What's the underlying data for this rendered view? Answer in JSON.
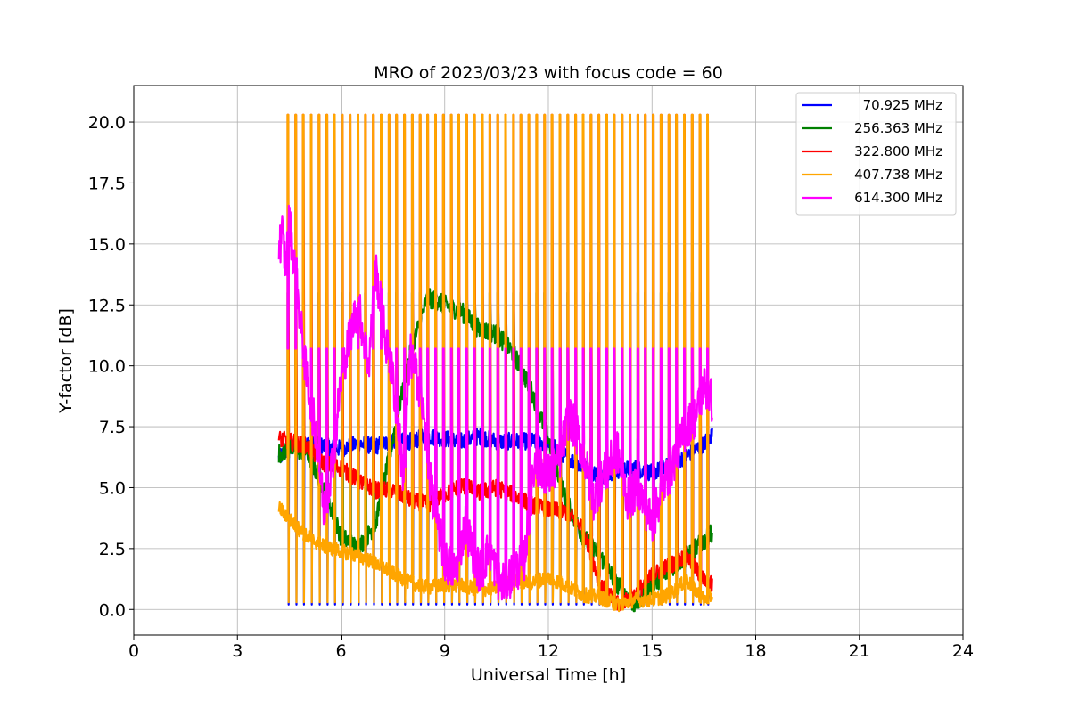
{
  "chart_data": {
    "type": "line",
    "title": "MRO of 2023/03/23 with focus code = 60",
    "xlabel": "Universal Time [h]",
    "ylabel": "Y-factor [dB]",
    "xlim": [
      0,
      24
    ],
    "ylim": [
      -1.05,
      21.5
    ],
    "xticks": [
      0,
      3,
      6,
      9,
      12,
      15,
      18,
      21,
      24
    ],
    "xtick_labels": [
      "0",
      "3",
      "6",
      "9",
      "12",
      "15",
      "18",
      "21",
      "24"
    ],
    "yticks": [
      0,
      2.5,
      5,
      7.5,
      10,
      12.5,
      15,
      17.5,
      20
    ],
    "ytick_labels": [
      "0.0",
      "2.5",
      "5.0",
      "7.5",
      "10.0",
      "12.5",
      "15.0",
      "17.5",
      "20.0"
    ],
    "grid": true,
    "legend_position": "top-right",
    "calibration_spikes": {
      "start": 4.45,
      "end": 16.6,
      "count": 55,
      "baseline_high_levels": {
        "70.925 MHz": 7.0,
        "256.363 MHz": 13.0,
        "322.800 MHz": 20.3,
        "407.738 MHz": 20.3,
        "614.300 MHz": 10.7
      },
      "baseline_low_levels": {
        "70.925 MHz": 0.2,
        "407.738 MHz": 0.3
      }
    },
    "series": [
      {
        "name": "70.925 MHz",
        "color": "#0000ff",
        "x": [
          4.2,
          4.5,
          5.0,
          5.5,
          6.0,
          6.5,
          7.0,
          7.5,
          8.0,
          8.5,
          9.0,
          9.5,
          10.0,
          10.5,
          11.0,
          11.5,
          12.0,
          12.5,
          13.0,
          13.5,
          14.0,
          14.5,
          15.0,
          15.5,
          16.0,
          16.5,
          16.75
        ],
        "y": [
          6.2,
          6.6,
          6.8,
          6.7,
          6.6,
          6.8,
          6.7,
          6.9,
          6.9,
          7.1,
          7.0,
          6.9,
          7.1,
          6.9,
          6.9,
          6.9,
          6.8,
          6.3,
          5.8,
          5.5,
          5.7,
          5.8,
          5.6,
          5.9,
          6.3,
          6.8,
          7.2
        ]
      },
      {
        "name": "256.363 MHz",
        "color": "#008000",
        "x": [
          4.2,
          4.5,
          5.0,
          5.5,
          6.0,
          6.5,
          7.0,
          7.5,
          8.0,
          8.5,
          9.0,
          9.5,
          10.0,
          10.5,
          11.0,
          11.5,
          12.0,
          12.5,
          13.0,
          13.5,
          14.0,
          14.5,
          15.0,
          15.5,
          16.0,
          16.5,
          16.75
        ],
        "y": [
          6.4,
          6.6,
          6.5,
          5.0,
          3.0,
          2.5,
          3.5,
          7.0,
          10.5,
          12.8,
          12.5,
          12.2,
          11.5,
          11.3,
          10.5,
          9.0,
          7.0,
          4.5,
          3.0,
          2.2,
          1.0,
          0.2,
          1.0,
          1.6,
          2.2,
          2.8,
          3.2
        ]
      },
      {
        "name": "322.800 MHz",
        "color": "#ff0000",
        "x": [
          4.2,
          4.5,
          5.0,
          5.5,
          6.0,
          6.5,
          7.0,
          7.5,
          8.0,
          8.5,
          9.0,
          9.5,
          10.0,
          10.5,
          11.0,
          11.5,
          12.0,
          12.5,
          13.0,
          13.5,
          14.0,
          14.5,
          15.0,
          15.5,
          16.0,
          16.5,
          16.75
        ],
        "y": [
          7.0,
          6.9,
          6.7,
          6.0,
          5.8,
          5.3,
          4.9,
          4.9,
          4.5,
          4.3,
          4.7,
          5.1,
          4.8,
          5.0,
          4.7,
          4.3,
          4.1,
          4.0,
          3.4,
          1.0,
          0.2,
          0.6,
          1.4,
          1.8,
          2.2,
          1.2,
          1.0
        ]
      },
      {
        "name": "407.738 MHz",
        "color": "#ffa500",
        "x": [
          4.2,
          4.5,
          5.0,
          5.5,
          6.0,
          6.5,
          7.0,
          7.5,
          8.0,
          8.5,
          9.0,
          9.5,
          10.0,
          10.5,
          11.0,
          11.5,
          12.0,
          12.5,
          13.0,
          13.5,
          14.0,
          14.5,
          15.0,
          15.5,
          16.0,
          16.5,
          16.75
        ],
        "y": [
          4.2,
          3.7,
          3.0,
          2.6,
          2.4,
          2.2,
          1.9,
          1.5,
          1.1,
          0.9,
          1.0,
          1.0,
          0.8,
          0.9,
          1.2,
          1.1,
          1.3,
          1.0,
          0.6,
          0.5,
          0.2,
          0.4,
          0.4,
          0.6,
          1.2,
          0.4,
          0.6
        ]
      },
      {
        "name": "614.300 MHz",
        "color": "#ff00ff",
        "x": [
          4.2,
          4.3,
          4.4,
          4.5,
          4.7,
          5.0,
          5.3,
          5.5,
          5.8,
          6.0,
          6.3,
          6.5,
          6.8,
          7.0,
          7.3,
          7.5,
          7.8,
          8.0,
          8.3,
          8.6,
          9.0,
          9.3,
          9.6,
          10.0,
          10.3,
          10.6,
          11.0,
          11.3,
          11.6,
          12.0,
          12.3,
          12.6,
          13.0,
          13.3,
          13.6,
          14.0,
          14.3,
          14.6,
          15.0,
          15.3,
          15.6,
          16.0,
          16.3,
          16.5,
          16.75
        ],
        "y": [
          14.8,
          15.5,
          14.0,
          16.0,
          13.5,
          9.5,
          7.0,
          4.0,
          6.5,
          9.5,
          11.5,
          12.5,
          10.0,
          14.0,
          11.0,
          9.5,
          5.5,
          10.5,
          9.0,
          5.0,
          2.0,
          1.5,
          3.5,
          1.5,
          2.5,
          1.0,
          1.5,
          2.0,
          6.0,
          5.5,
          6.0,
          8.0,
          6.5,
          4.5,
          5.5,
          6.5,
          4.5,
          5.0,
          3.5,
          5.0,
          6.0,
          7.5,
          8.0,
          9.2,
          8.5
        ]
      }
    ]
  }
}
